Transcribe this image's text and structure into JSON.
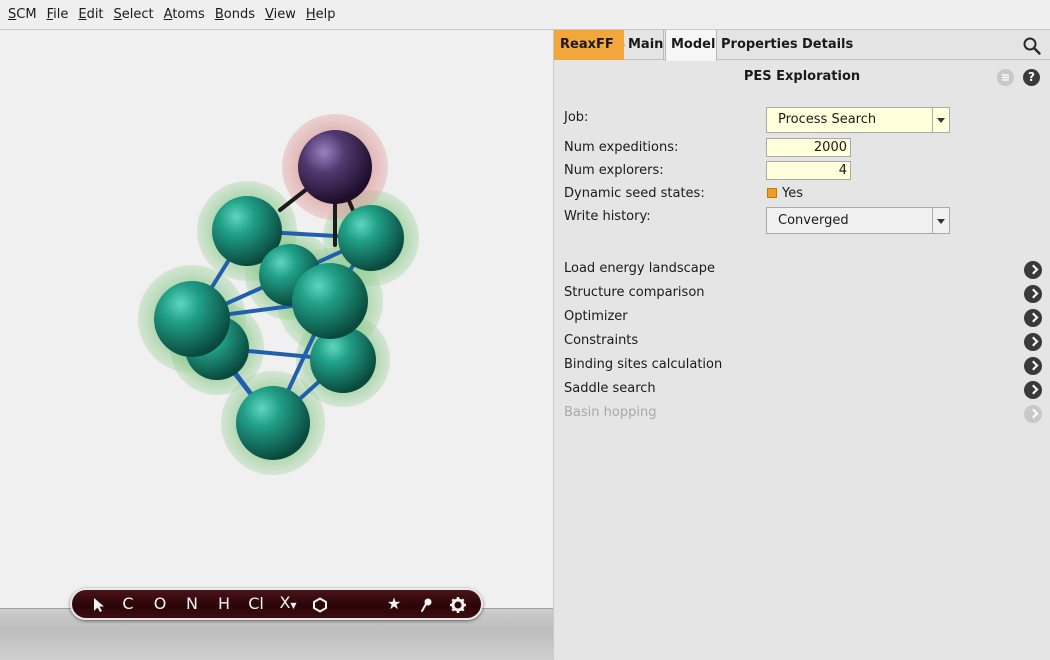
{
  "menubar": {
    "items": [
      {
        "u": "S",
        "rest": "CM"
      },
      {
        "u": "F",
        "rest": "ile"
      },
      {
        "u": "E",
        "rest": "dit"
      },
      {
        "u": "S",
        "rest": "elect"
      },
      {
        "u": "A",
        "rest": "toms"
      },
      {
        "u": "B",
        "rest": "onds"
      },
      {
        "u": "V",
        "rest": "iew"
      },
      {
        "u": "H",
        "rest": "elp"
      }
    ]
  },
  "toolbar": {
    "tools": [
      "C",
      "O",
      "N",
      "H",
      "Cl",
      "X"
    ]
  },
  "tabs": {
    "reaxff": "ReaxFF",
    "main": "Main",
    "model": "Model",
    "properties": "Properties",
    "details": "Details"
  },
  "panel": {
    "title": "PES Exploration",
    "help": "?",
    "job_label": "Job:",
    "job_value": "Process Search",
    "num_expeditions_label": "Num expeditions:",
    "num_expeditions_value": "2000",
    "num_explorers_label": "Num explorers:",
    "num_explorers_value": "4",
    "dynamic_seed_label": "Dynamic seed states:",
    "dynamic_seed_value": "Yes",
    "write_history_label": "Write history:",
    "write_history_value": "Converged",
    "sections": [
      "Load energy landscape",
      "Structure comparison",
      "Optimizer",
      "Constraints",
      "Binding sites calculation",
      "Saddle search",
      "Basin hopping"
    ]
  },
  "colors": {
    "accent_tab": "#f3a63c",
    "field_bg": "#ffffdc",
    "atom_teal": "#1f8f7a",
    "atom_purple": "#4b3566",
    "bond_blue": "#1f5fae"
  }
}
